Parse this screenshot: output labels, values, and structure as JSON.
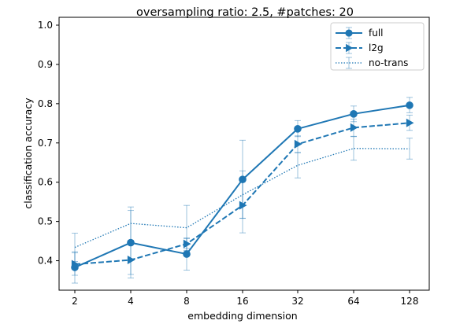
{
  "chart_data": {
    "type": "line",
    "title": "oversampling ratio: 2.5, #patches: 20",
    "xlabel": "embedding dimension",
    "ylabel": "classification accuracy",
    "x": [
      "2",
      "4",
      "8",
      "16",
      "32",
      "64",
      "128"
    ],
    "ylim": [
      0.325,
      1.02
    ],
    "yticks": [
      "0.4",
      "0.5",
      "0.6",
      "0.7",
      "0.8",
      "0.9",
      "1.0"
    ],
    "grid": false,
    "legend_position": "top-right",
    "color": "#1f77b4",
    "series": [
      {
        "name": "full",
        "style": "solid",
        "marker": "circle",
        "values": [
          0.383,
          0.446,
          0.417,
          0.607,
          0.736,
          0.774,
          0.796
        ],
        "err_low": [
          0.343,
          0.365,
          0.376,
          0.508,
          0.716,
          0.754,
          0.777
        ],
        "err_high": [
          0.423,
          0.528,
          0.458,
          0.707,
          0.757,
          0.794,
          0.816
        ]
      },
      {
        "name": "l2g",
        "style": "dashed",
        "marker": "triangle-right",
        "values": [
          0.391,
          0.402,
          0.443,
          0.541,
          0.697,
          0.739,
          0.751
        ],
        "err_low": [
          0.363,
          0.356,
          0.431,
          0.471,
          0.676,
          0.717,
          0.732
        ],
        "err_high": [
          0.42,
          0.448,
          0.456,
          0.612,
          0.718,
          0.761,
          0.771
        ]
      },
      {
        "name": "no-trans",
        "style": "dotted",
        "marker": "none",
        "values": [
          0.434,
          0.495,
          0.484,
          0.568,
          0.643,
          0.686,
          0.685
        ],
        "err_low": [
          0.398,
          0.452,
          0.426,
          0.508,
          0.611,
          0.656,
          0.659
        ],
        "err_high": [
          0.47,
          0.537,
          0.541,
          0.629,
          0.675,
          0.716,
          0.712
        ]
      }
    ]
  }
}
